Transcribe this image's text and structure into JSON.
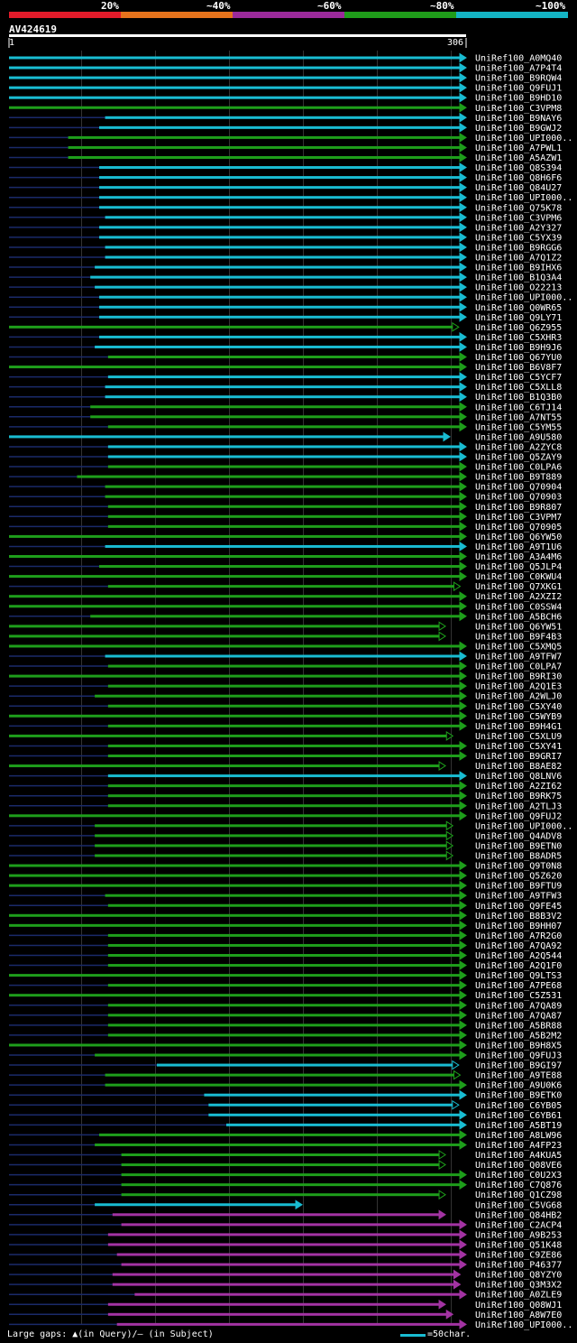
{
  "identity_legend": {
    "labels": [
      "20%",
      "~40%",
      "~60%",
      "~80%",
      "~100%"
    ],
    "colors": [
      "#e21b2a",
      "#e6731c",
      "#9b2a9a",
      "#1f9c1a",
      "#14b4c4"
    ]
  },
  "chart_data": {
    "type": "alignment",
    "query": "AV424619",
    "query_length": 306,
    "ruler_start": "1",
    "ruler_end": "306",
    "color_key": {
      "cyan": "~100%",
      "green": "~80%",
      "magenta": "~60%",
      "orange": "~40%",
      "red": "20%"
    },
    "hits": [
      {
        "name": "UniRef100_A0MQ40",
        "start": 1,
        "end": 306,
        "identity": "cyan",
        "arrow": "filled"
      },
      {
        "name": "UniRef100_A7P4T4",
        "start": 1,
        "end": 306,
        "identity": "cyan",
        "arrow": "filled"
      },
      {
        "name": "UniRef100_B9RQW4",
        "start": 1,
        "end": 306,
        "identity": "cyan",
        "arrow": "filled"
      },
      {
        "name": "UniRef100_Q9FUJ1",
        "start": 1,
        "end": 306,
        "identity": "cyan",
        "arrow": "filled"
      },
      {
        "name": "UniRef100_B9HD10",
        "start": 1,
        "end": 306,
        "identity": "cyan",
        "arrow": "filled"
      },
      {
        "name": "UniRef100_C3VPM8",
        "start": 1,
        "end": 306,
        "identity": "green",
        "arrow": "filled"
      },
      {
        "name": "UniRef100_B9NAY6",
        "start": 66,
        "end": 306,
        "identity": "cyan",
        "arrow": "filled"
      },
      {
        "name": "UniRef100_B9GWJ2",
        "start": 62,
        "end": 306,
        "identity": "cyan",
        "arrow": "filled"
      },
      {
        "name": "UniRef100_UPI000..",
        "start": 41,
        "end": 306,
        "identity": "green",
        "arrow": "filled"
      },
      {
        "name": "UniRef100_A7PWL1",
        "start": 41,
        "end": 306,
        "identity": "green",
        "arrow": "filled"
      },
      {
        "name": "UniRef100_A5AZW1",
        "start": 41,
        "end": 306,
        "identity": "green",
        "arrow": "filled"
      },
      {
        "name": "UniRef100_Q8S394",
        "start": 62,
        "end": 306,
        "identity": "cyan",
        "arrow": "filled"
      },
      {
        "name": "UniRef100_Q8H6F6",
        "start": 62,
        "end": 306,
        "identity": "cyan",
        "arrow": "filled"
      },
      {
        "name": "UniRef100_Q84U27",
        "start": 62,
        "end": 306,
        "identity": "cyan",
        "arrow": "filled"
      },
      {
        "name": "UniRef100_UPI000..",
        "start": 62,
        "end": 306,
        "identity": "cyan",
        "arrow": "filled"
      },
      {
        "name": "UniRef100_Q75K78",
        "start": 62,
        "end": 306,
        "identity": "cyan",
        "arrow": "filled"
      },
      {
        "name": "UniRef100_C3VPM6",
        "start": 66,
        "end": 306,
        "identity": "cyan",
        "arrow": "filled"
      },
      {
        "name": "UniRef100_A2Y327",
        "start": 62,
        "end": 306,
        "identity": "cyan",
        "arrow": "filled"
      },
      {
        "name": "UniRef100_C5YX39",
        "start": 62,
        "end": 306,
        "identity": "cyan",
        "arrow": "filled"
      },
      {
        "name": "UniRef100_B9RGG6",
        "start": 66,
        "end": 306,
        "identity": "cyan",
        "arrow": "filled"
      },
      {
        "name": "UniRef100_A7Q1Z2",
        "start": 66,
        "end": 306,
        "identity": "cyan",
        "arrow": "filled"
      },
      {
        "name": "UniRef100_B9IHX6",
        "start": 59,
        "end": 306,
        "identity": "cyan",
        "arrow": "filled"
      },
      {
        "name": "UniRef100_B1Q3A4",
        "start": 56,
        "end": 306,
        "identity": "cyan",
        "arrow": "filled"
      },
      {
        "name": "UniRef100_O22213",
        "start": 59,
        "end": 306,
        "identity": "cyan",
        "arrow": "filled"
      },
      {
        "name": "UniRef100_UPI000..",
        "start": 62,
        "end": 306,
        "identity": "cyan",
        "arrow": "filled"
      },
      {
        "name": "UniRef100_Q0WR65",
        "start": 62,
        "end": 306,
        "identity": "cyan",
        "arrow": "filled"
      },
      {
        "name": "UniRef100_Q9LY71",
        "start": 62,
        "end": 306,
        "identity": "cyan",
        "arrow": "filled"
      },
      {
        "name": "UniRef100_Q6Z955",
        "start": 1,
        "end": 301,
        "identity": "green",
        "arrow": "open"
      },
      {
        "name": "UniRef100_C5XHR3",
        "start": 62,
        "end": 306,
        "identity": "cyan",
        "arrow": "filled"
      },
      {
        "name": "UniRef100_B9H9J6",
        "start": 59,
        "end": 306,
        "identity": "cyan",
        "arrow": "filled"
      },
      {
        "name": "UniRef100_Q67YU0",
        "start": 68,
        "end": 306,
        "identity": "green",
        "arrow": "filled"
      },
      {
        "name": "UniRef100_B6V8F7",
        "start": 1,
        "end": 306,
        "identity": "green",
        "arrow": "filled"
      },
      {
        "name": "UniRef100_C5YCF7",
        "start": 68,
        "end": 306,
        "identity": "cyan",
        "arrow": "filled"
      },
      {
        "name": "UniRef100_C5XLL8",
        "start": 66,
        "end": 306,
        "identity": "cyan",
        "arrow": "filled"
      },
      {
        "name": "UniRef100_B1Q3B0",
        "start": 66,
        "end": 306,
        "identity": "cyan",
        "arrow": "filled"
      },
      {
        "name": "UniRef100_C6TJ14",
        "start": 56,
        "end": 306,
        "identity": "green",
        "arrow": "filled"
      },
      {
        "name": "UniRef100_A7NT55",
        "start": 56,
        "end": 306,
        "identity": "green",
        "arrow": "filled"
      },
      {
        "name": "UniRef100_C5YM55",
        "start": 68,
        "end": 306,
        "identity": "green",
        "arrow": "filled"
      },
      {
        "name": "UniRef100_A9U580",
        "start": 1,
        "end": 295,
        "identity": "cyan",
        "arrow": "filled"
      },
      {
        "name": "UniRef100_A2ZYC8",
        "start": 68,
        "end": 306,
        "identity": "cyan",
        "arrow": "filled"
      },
      {
        "name": "UniRef100_Q5ZAY9",
        "start": 68,
        "end": 306,
        "identity": "cyan",
        "arrow": "filled"
      },
      {
        "name": "UniRef100_C0LPA6",
        "start": 68,
        "end": 306,
        "identity": "green",
        "arrow": "filled"
      },
      {
        "name": "UniRef100_B9T889",
        "start": 47,
        "end": 306,
        "identity": "green",
        "arrow": "filled"
      },
      {
        "name": "UniRef100_Q70904",
        "start": 66,
        "end": 306,
        "identity": "green",
        "arrow": "filled"
      },
      {
        "name": "UniRef100_Q70903",
        "start": 66,
        "end": 306,
        "identity": "green",
        "arrow": "filled"
      },
      {
        "name": "UniRef100_B9R807",
        "start": 68,
        "end": 306,
        "identity": "green",
        "arrow": "filled"
      },
      {
        "name": "UniRef100_C3VPM7",
        "start": 68,
        "end": 306,
        "identity": "green",
        "arrow": "filled"
      },
      {
        "name": "UniRef100_Q70905",
        "start": 68,
        "end": 306,
        "identity": "green",
        "arrow": "filled"
      },
      {
        "name": "UniRef100_Q6YW50",
        "start": 1,
        "end": 306,
        "identity": "green",
        "arrow": "filled"
      },
      {
        "name": "UniRef100_A9T1U6",
        "start": 66,
        "end": 306,
        "identity": "cyan",
        "arrow": "filled"
      },
      {
        "name": "UniRef100_A3A4M6",
        "start": 1,
        "end": 306,
        "identity": "green",
        "arrow": "filled"
      },
      {
        "name": "UniRef100_Q5JLP4",
        "start": 62,
        "end": 306,
        "identity": "green",
        "arrow": "filled"
      },
      {
        "name": "UniRef100_C0KWU4",
        "start": 1,
        "end": 306,
        "identity": "green",
        "arrow": "filled"
      },
      {
        "name": "UniRef100_Q7XKG1",
        "start": 68,
        "end": 302,
        "identity": "green",
        "arrow": "open"
      },
      {
        "name": "UniRef100_A2XZI2",
        "start": 1,
        "end": 306,
        "identity": "green",
        "arrow": "filled"
      },
      {
        "name": "UniRef100_C0SSW4",
        "start": 1,
        "end": 306,
        "identity": "green",
        "arrow": "filled"
      },
      {
        "name": "UniRef100_A5BCH6",
        "start": 56,
        "end": 306,
        "identity": "green",
        "arrow": "filled"
      },
      {
        "name": "UniRef100_Q6YW51",
        "start": 1,
        "end": 292,
        "identity": "green",
        "arrow": "open"
      },
      {
        "name": "UniRef100_B9F4B3",
        "start": 1,
        "end": 292,
        "identity": "green",
        "arrow": "open"
      },
      {
        "name": "UniRef100_C5XMQ5",
        "start": 1,
        "end": 306,
        "identity": "green",
        "arrow": "filled"
      },
      {
        "name": "UniRef100_A9TFW7",
        "start": 66,
        "end": 306,
        "identity": "cyan",
        "arrow": "filled"
      },
      {
        "name": "UniRef100_C0LPA7",
        "start": 68,
        "end": 306,
        "identity": "green",
        "arrow": "filled"
      },
      {
        "name": "UniRef100_B9RI30",
        "start": 1,
        "end": 306,
        "identity": "green",
        "arrow": "filled"
      },
      {
        "name": "UniRef100_A2Q1E3",
        "start": 68,
        "end": 306,
        "identity": "green",
        "arrow": "filled"
      },
      {
        "name": "UniRef100_A2WLJ0",
        "start": 59,
        "end": 306,
        "identity": "green",
        "arrow": "filled"
      },
      {
        "name": "UniRef100_C5XY40",
        "start": 68,
        "end": 306,
        "identity": "green",
        "arrow": "filled"
      },
      {
        "name": "UniRef100_C5WYB9",
        "start": 1,
        "end": 306,
        "identity": "green",
        "arrow": "filled"
      },
      {
        "name": "UniRef100_B9H4G1",
        "start": 68,
        "end": 306,
        "identity": "green",
        "arrow": "filled"
      },
      {
        "name": "UniRef100_C5XLU9",
        "start": 1,
        "end": 297,
        "identity": "green",
        "arrow": "open"
      },
      {
        "name": "UniRef100_C5XY41",
        "start": 68,
        "end": 306,
        "identity": "green",
        "arrow": "filled"
      },
      {
        "name": "UniRef100_B9GRI7",
        "start": 68,
        "end": 306,
        "identity": "green",
        "arrow": "filled"
      },
      {
        "name": "UniRef100_B8AE82",
        "start": 1,
        "end": 292,
        "identity": "green",
        "arrow": "open"
      },
      {
        "name": "UniRef100_Q8LNV6",
        "start": 68,
        "end": 306,
        "identity": "cyan",
        "arrow": "filled"
      },
      {
        "name": "UniRef100_A2ZI62",
        "start": 68,
        "end": 306,
        "identity": "green",
        "arrow": "filled"
      },
      {
        "name": "UniRef100_B9RK75",
        "start": 68,
        "end": 306,
        "identity": "green",
        "arrow": "filled"
      },
      {
        "name": "UniRef100_A2TLJ3",
        "start": 68,
        "end": 306,
        "identity": "green",
        "arrow": "filled"
      },
      {
        "name": "UniRef100_Q9FUJ2",
        "start": 1,
        "end": 306,
        "identity": "green",
        "arrow": "filled"
      },
      {
        "name": "UniRef100_UPI000..",
        "start": 59,
        "end": 297,
        "identity": "green",
        "arrow": "open"
      },
      {
        "name": "UniRef100_Q4ADV8",
        "start": 59,
        "end": 297,
        "identity": "green",
        "arrow": "open"
      },
      {
        "name": "UniRef100_B9ETN0",
        "start": 59,
        "end": 297,
        "identity": "green",
        "arrow": "open"
      },
      {
        "name": "UniRef100_B8ADR5",
        "start": 59,
        "end": 297,
        "identity": "green",
        "arrow": "open"
      },
      {
        "name": "UniRef100_Q9T0N8",
        "start": 1,
        "end": 306,
        "identity": "green",
        "arrow": "filled"
      },
      {
        "name": "UniRef100_Q5Z620",
        "start": 1,
        "end": 306,
        "identity": "green",
        "arrow": "filled"
      },
      {
        "name": "UniRef100_B9FTU9",
        "start": 1,
        "end": 306,
        "identity": "green",
        "arrow": "filled"
      },
      {
        "name": "UniRef100_A9TFW3",
        "start": 66,
        "end": 306,
        "identity": "green",
        "arrow": "filled"
      },
      {
        "name": "UniRef100_Q9FE45",
        "start": 68,
        "end": 306,
        "identity": "green",
        "arrow": "filled"
      },
      {
        "name": "UniRef100_B8B3V2",
        "start": 1,
        "end": 306,
        "identity": "green",
        "arrow": "filled"
      },
      {
        "name": "UniRef100_B9HH07",
        "start": 1,
        "end": 306,
        "identity": "green",
        "arrow": "filled"
      },
      {
        "name": "UniRef100_A7R2G0",
        "start": 68,
        "end": 306,
        "identity": "green",
        "arrow": "filled"
      },
      {
        "name": "UniRef100_A7QA92",
        "start": 68,
        "end": 306,
        "identity": "green",
        "arrow": "filled"
      },
      {
        "name": "UniRef100_A2Q544",
        "start": 68,
        "end": 306,
        "identity": "green",
        "arrow": "filled"
      },
      {
        "name": "UniRef100_A2Q1F0",
        "start": 68,
        "end": 306,
        "identity": "green",
        "arrow": "filled"
      },
      {
        "name": "UniRef100_Q9LTS3",
        "start": 1,
        "end": 306,
        "identity": "green",
        "arrow": "filled"
      },
      {
        "name": "UniRef100_A7PE68",
        "start": 68,
        "end": 306,
        "identity": "green",
        "arrow": "filled"
      },
      {
        "name": "UniRef100_C5Z531",
        "start": 1,
        "end": 306,
        "identity": "green",
        "arrow": "filled"
      },
      {
        "name": "UniRef100_A7QA89",
        "start": 68,
        "end": 306,
        "identity": "green",
        "arrow": "filled"
      },
      {
        "name": "UniRef100_A7QA87",
        "start": 68,
        "end": 306,
        "identity": "green",
        "arrow": "filled"
      },
      {
        "name": "UniRef100_A5BR88",
        "start": 68,
        "end": 306,
        "identity": "green",
        "arrow": "filled"
      },
      {
        "name": "UniRef100_A5B2M2",
        "start": 68,
        "end": 306,
        "identity": "green",
        "arrow": "filled"
      },
      {
        "name": "UniRef100_B9H8X5",
        "start": 1,
        "end": 306,
        "identity": "green",
        "arrow": "filled"
      },
      {
        "name": "UniRef100_Q9FUJ3",
        "start": 59,
        "end": 306,
        "identity": "green",
        "arrow": "filled"
      },
      {
        "name": "UniRef100_B9GI97",
        "start": 101,
        "end": 301,
        "identity": "cyan",
        "arrow": "open"
      },
      {
        "name": "UniRef100_A9TE88",
        "start": 66,
        "end": 302,
        "identity": "green",
        "arrow": "open"
      },
      {
        "name": "UniRef100_A9U0K6",
        "start": 66,
        "end": 306,
        "identity": "green",
        "arrow": "filled"
      },
      {
        "name": "UniRef100_B9ETK0",
        "start": 133,
        "end": 306,
        "identity": "cyan",
        "arrow": "filled"
      },
      {
        "name": "UniRef100_C6YB05",
        "start": 136,
        "end": 301,
        "identity": "cyan",
        "arrow": "open"
      },
      {
        "name": "UniRef100_C6YB61",
        "start": 136,
        "end": 306,
        "identity": "cyan",
        "arrow": "filled"
      },
      {
        "name": "UniRef100_A5BT19",
        "start": 148,
        "end": 306,
        "identity": "cyan",
        "arrow": "filled"
      },
      {
        "name": "UniRef100_A8LW96",
        "start": 62,
        "end": 306,
        "identity": "green",
        "arrow": "filled"
      },
      {
        "name": "UniRef100_A4FP23",
        "start": 59,
        "end": 306,
        "identity": "green",
        "arrow": "filled"
      },
      {
        "name": "UniRef100_A4KUA5",
        "start": 77,
        "end": 292,
        "identity": "green",
        "arrow": "open"
      },
      {
        "name": "UniRef100_Q08VE6",
        "start": 77,
        "end": 292,
        "identity": "green",
        "arrow": "open"
      },
      {
        "name": "UniRef100_C0U2X3",
        "start": 77,
        "end": 306,
        "identity": "green",
        "arrow": "filled"
      },
      {
        "name": "UniRef100_C7Q876",
        "start": 77,
        "end": 306,
        "identity": "green",
        "arrow": "filled"
      },
      {
        "name": "UniRef100_Q1CZ98",
        "start": 77,
        "end": 292,
        "identity": "green",
        "arrow": "open"
      },
      {
        "name": "UniRef100_C5VG68",
        "start": 59,
        "end": 195,
        "identity": "cyan",
        "arrow": "filled"
      },
      {
        "name": "UniRef100_Q84HB2",
        "start": 71,
        "end": 292,
        "identity": "magenta",
        "arrow": "filled"
      },
      {
        "name": "UniRef100_C2ACP4",
        "start": 77,
        "end": 306,
        "identity": "magenta",
        "arrow": "filled"
      },
      {
        "name": "UniRef100_A9B253",
        "start": 68,
        "end": 306,
        "identity": "magenta",
        "arrow": "filled"
      },
      {
        "name": "UniRef100_Q51K48",
        "start": 68,
        "end": 306,
        "identity": "magenta",
        "arrow": "filled"
      },
      {
        "name": "UniRef100_C9ZE86",
        "start": 74,
        "end": 306,
        "identity": "magenta",
        "arrow": "filled"
      },
      {
        "name": "UniRef100_P46377",
        "start": 77,
        "end": 306,
        "identity": "magenta",
        "arrow": "filled"
      },
      {
        "name": "UniRef100_Q8YZY0",
        "start": 71,
        "end": 302,
        "identity": "magenta",
        "arrow": "filled"
      },
      {
        "name": "UniRef100_Q3M3X2",
        "start": 71,
        "end": 302,
        "identity": "magenta",
        "arrow": "filled"
      },
      {
        "name": "UniRef100_A0ZLE9",
        "start": 86,
        "end": 306,
        "identity": "magenta",
        "arrow": "filled"
      },
      {
        "name": "UniRef100_Q08WJ1",
        "start": 68,
        "end": 292,
        "identity": "magenta",
        "arrow": "filled"
      },
      {
        "name": "UniRef100_A8W7E0",
        "start": 68,
        "end": 297,
        "identity": "magenta",
        "arrow": "filled"
      },
      {
        "name": "UniRef100_UPI000..",
        "start": 74,
        "end": 306,
        "identity": "magenta",
        "arrow": "filled"
      }
    ]
  },
  "footer": {
    "gaps_note": "Large gaps: ▲(in Query)/— (in Subject)",
    "scale_note": "=50char."
  }
}
